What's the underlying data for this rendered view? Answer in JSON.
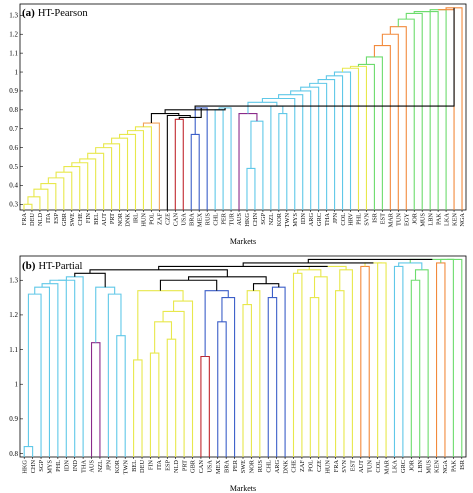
{
  "chart_data": [
    {
      "type": "dendrogram",
      "panel_letter": "(a)",
      "title": "HT-Pearson",
      "xlabel": "Markets",
      "ylabel": "",
      "ylim": [
        0.27,
        1.36
      ],
      "yticks": [
        0.3,
        0.4,
        0.5,
        0.6,
        0.7,
        0.8,
        0.9,
        1,
        1.1,
        1.2,
        1.3
      ],
      "ytick_labels": [
        "0.3",
        "0.4",
        "0.5",
        "0.6",
        "0.7",
        "0.8",
        "0.9",
        "1",
        "1.1",
        "1.2",
        "1.3"
      ],
      "leaves": [
        "FRA",
        "DEU",
        "NLD",
        "ITA",
        "ESP",
        "GBR",
        "SWE",
        "CHE",
        "FIN",
        "BEL",
        "AUT",
        "PRT",
        "NOR",
        "DNK",
        "IRL",
        "HUN",
        "POL",
        "ZAF",
        "CZE",
        "CAN",
        "USA",
        "BRA",
        "MEX",
        "RUS",
        "CHL",
        "PER",
        "TUR",
        "AUS",
        "HKG",
        "CHN",
        "SGP",
        "NZL",
        "KOR",
        "TWN",
        "MYS",
        "IDN",
        "ARG",
        "GRC",
        "THA",
        "JPN",
        "COL",
        "HRV",
        "PHL",
        "SVN",
        "ISR",
        "EST",
        "MAR",
        "TUN",
        "EGY",
        "JOR",
        "MUS",
        "LBN",
        "PAK",
        "LKA",
        "KEN",
        "NGA"
      ],
      "merges": [
        {
          "a": "FRA",
          "b": "DEU",
          "h": 0.3,
          "color": "#e8e84c"
        },
        {
          "a": "c1",
          "b": "NLD",
          "h": 0.34,
          "color": "#e8e84c"
        },
        {
          "a": "c2",
          "b": "ITA",
          "h": 0.38,
          "color": "#e8e84c"
        },
        {
          "a": "c3",
          "b": "ESP",
          "h": 0.41,
          "color": "#e8e84c"
        },
        {
          "a": "c4",
          "b": "GBR",
          "h": 0.44,
          "color": "#e8e84c"
        },
        {
          "a": "c5",
          "b": "SWE",
          "h": 0.47,
          "color": "#e8e84c"
        },
        {
          "a": "c6",
          "b": "CHE",
          "h": 0.5,
          "color": "#e8e84c"
        },
        {
          "a": "c7",
          "b": "FIN",
          "h": 0.52,
          "color": "#e8e84c"
        },
        {
          "a": "c8",
          "b": "BEL",
          "h": 0.54,
          "color": "#e8e84c"
        },
        {
          "a": "c9",
          "b": "AUT",
          "h": 0.57,
          "color": "#e8e84c"
        },
        {
          "a": "c10",
          "b": "PRT",
          "h": 0.6,
          "color": "#e8e84c"
        },
        {
          "a": "c11",
          "b": "NOR",
          "h": 0.62,
          "color": "#e8e84c"
        },
        {
          "a": "c12",
          "b": "DNK",
          "h": 0.65,
          "color": "#e8e84c"
        },
        {
          "a": "c13",
          "b": "IRL",
          "h": 0.67,
          "color": "#e8e84c"
        },
        {
          "a": "c14",
          "b": "HUN",
          "h": 0.69,
          "color": "#e8e84c"
        },
        {
          "a": "c15",
          "b": "POL",
          "h": 0.71,
          "color": "#e8e84c"
        },
        {
          "a": "c16",
          "b": "ZAF",
          "h": 0.73,
          "color": "#f2a35a"
        },
        {
          "a": "CAN",
          "b": "USA",
          "h": 0.75,
          "color": "#c0282e"
        },
        {
          "a": "BRA",
          "b": "MEX",
          "h": 0.67,
          "color": "#3c5fc8"
        },
        {
          "a": "c19",
          "b": "RUS",
          "h": 0.81,
          "color": "#3c5fc8"
        },
        {
          "a": "c18",
          "b": "c20",
          "h": 0.76,
          "color": "#000000"
        },
        {
          "a": "CZE",
          "b": "c21",
          "h": 0.77,
          "color": "#000000"
        },
        {
          "a": "CHL",
          "b": "PER",
          "h": 0.8,
          "color": "#60c8e8"
        },
        {
          "a": "c23",
          "b": "TUR",
          "h": 0.81,
          "color": "#60c8e8"
        },
        {
          "a": "HKG",
          "b": "CHN",
          "h": 0.49,
          "color": "#60c8e8"
        },
        {
          "a": "c25",
          "b": "SGP",
          "h": 0.74,
          "color": "#60c8e8"
        },
        {
          "a": "AUS",
          "b": "c26",
          "h": 0.78,
          "color": "#8a2b8a"
        },
        {
          "a": "KOR",
          "b": "TWN",
          "h": 0.78,
          "color": "#60c8e8"
        },
        {
          "a": "NZL",
          "b": "c28",
          "h": 0.82,
          "color": "#60c8e8"
        },
        {
          "a": "c27",
          "b": "c29",
          "h": 0.84,
          "color": "#60c8e8"
        },
        {
          "a": "c30",
          "b": "MYS",
          "h": 0.86,
          "color": "#60c8e8"
        },
        {
          "a": "c31",
          "b": "IDN",
          "h": 0.88,
          "color": "#60c8e8"
        },
        {
          "a": "c32",
          "b": "ARG",
          "h": 0.9,
          "color": "#60c8e8"
        },
        {
          "a": "c33",
          "b": "GRC",
          "h": 0.92,
          "color": "#60c8e8"
        },
        {
          "a": "c34",
          "b": "THA",
          "h": 0.94,
          "color": "#60c8e8"
        },
        {
          "a": "c35",
          "b": "JPN",
          "h": 0.96,
          "color": "#60c8e8"
        },
        {
          "a": "c36",
          "b": "COL",
          "h": 0.98,
          "color": "#60c8e8"
        },
        {
          "a": "c37",
          "b": "HRV",
          "h": 1.0,
          "color": "#60c8e8"
        },
        {
          "a": "c38",
          "b": "PHL",
          "h": 1.02,
          "color": "#e8e84c"
        },
        {
          "a": "c39",
          "b": "SVN",
          "h": 1.03,
          "color": "#e8e84c"
        },
        {
          "a": "c40",
          "b": "ISR",
          "h": 1.04,
          "color": "#6ddc6d"
        },
        {
          "a": "c41",
          "b": "EST",
          "h": 1.08,
          "color": "#6ddc6d"
        },
        {
          "a": "c42",
          "b": "MAR",
          "h": 1.14,
          "color": "#f28a3c"
        },
        {
          "a": "c43",
          "b": "TUN",
          "h": 1.2,
          "color": "#f28a3c"
        },
        {
          "a": "c44",
          "b": "EGY",
          "h": 1.24,
          "color": "#f28a3c"
        },
        {
          "a": "c45",
          "b": "JOR",
          "h": 1.28,
          "color": "#6ddc6d"
        },
        {
          "a": "c46",
          "b": "MUS",
          "h": 1.31,
          "color": "#6ddc6d"
        },
        {
          "a": "c47",
          "b": "LBN",
          "h": 1.32,
          "color": "#6ddc6d"
        },
        {
          "a": "c48",
          "b": "PAK",
          "h": 1.32,
          "color": "#6ddc6d"
        },
        {
          "a": "c49",
          "b": "LKA",
          "h": 1.33,
          "color": "#6ddc6d"
        },
        {
          "a": "c50",
          "b": "KEN",
          "h": 1.33,
          "color": "#f28a3c"
        },
        {
          "a": "c51",
          "b": "NGA",
          "h": 1.34,
          "color": "#f28a3c"
        },
        {
          "a": "c17",
          "b": "c22",
          "h": 0.78,
          "color": "#000000"
        },
        {
          "a": "c53",
          "b": "c24",
          "h": 0.8,
          "color": "#000000"
        },
        {
          "a": "c54",
          "b": "c52",
          "h": 0.82,
          "color": "#000000"
        }
      ],
      "grid": false
    },
    {
      "type": "dendrogram",
      "panel_letter": "(b)",
      "title": "HT-Partial",
      "xlabel": "Markets",
      "ylabel": "",
      "ylim": [
        0.79,
        1.37
      ],
      "yticks": [
        0.8,
        0.9,
        1,
        1.1,
        1.2,
        1.3
      ],
      "ytick_labels": [
        "0.8",
        "0.9",
        "1",
        "1.1",
        "1.2",
        "1.3"
      ],
      "leaves": [
        "HKG",
        "CHN",
        "SGP",
        "MYS",
        "PHL",
        "IDN",
        "IND",
        "THA",
        "AUS",
        "NZL",
        "JPN",
        "KOR",
        "TWN",
        "BEL",
        "DEU",
        "FIN",
        "ITA",
        "ESP",
        "NLD",
        "PRT",
        "GBR",
        "CAN",
        "USA",
        "MEX",
        "BRA",
        "PER",
        "SWE",
        "NOR",
        "RUS",
        "CHL",
        "ARG",
        "DNK",
        "CHE",
        "ZAF",
        "POL",
        "CZE",
        "HUN",
        "FRA",
        "SVN",
        "EST",
        "AUT",
        "TUN",
        "COL",
        "MAR",
        "LKA",
        "GRC",
        "JOR",
        "LBN",
        "MUS",
        "KEN",
        "NGA",
        "PAK",
        "ISR"
      ],
      "merges": [
        {
          "a": "HKG",
          "b": "CHN",
          "h": 0.82,
          "color": "#60c8e8"
        },
        {
          "a": "c1",
          "b": "SGP",
          "h": 1.26,
          "color": "#60c8e8"
        },
        {
          "a": "c2",
          "b": "MYS",
          "h": 1.28,
          "color": "#60c8e8"
        },
        {
          "a": "c3",
          "b": "PHL",
          "h": 1.29,
          "color": "#60c8e8"
        },
        {
          "a": "c4",
          "b": "IDN",
          "h": 1.3,
          "color": "#60c8e8"
        },
        {
          "a": "c5",
          "b": "IND",
          "h": 1.3,
          "color": "#60c8e8"
        },
        {
          "a": "c6",
          "b": "THA",
          "h": 1.31,
          "color": "#60c8e8"
        },
        {
          "a": "AUS",
          "b": "NZL",
          "h": 1.12,
          "color": "#8a2b8a"
        },
        {
          "a": "KOR",
          "b": "TWN",
          "h": 1.14,
          "color": "#60c8e8"
        },
        {
          "a": "JPN",
          "b": "c9",
          "h": 1.26,
          "color": "#60c8e8"
        },
        {
          "a": "c8",
          "b": "c10",
          "h": 1.28,
          "color": "#60c8e8"
        },
        {
          "a": "c7",
          "b": "c11",
          "h": 1.32,
          "color": "#000000"
        },
        {
          "a": "BEL",
          "b": "DEU",
          "h": 1.07,
          "color": "#e8e84c"
        },
        {
          "a": "FIN",
          "b": "ITA",
          "h": 1.09,
          "color": "#e8e84c"
        },
        {
          "a": "ESP",
          "b": "NLD",
          "h": 1.13,
          "color": "#e8e84c"
        },
        {
          "a": "c14",
          "b": "c15",
          "h": 1.18,
          "color": "#e8e84c"
        },
        {
          "a": "c16",
          "b": "PRT",
          "h": 1.21,
          "color": "#e8e84c"
        },
        {
          "a": "c17",
          "b": "GBR",
          "h": 1.24,
          "color": "#e8e84c"
        },
        {
          "a": "c13",
          "b": "c18",
          "h": 1.27,
          "color": "#e8e84c"
        },
        {
          "a": "CAN",
          "b": "USA",
          "h": 1.08,
          "color": "#c0282e"
        },
        {
          "a": "MEX",
          "b": "BRA",
          "h": 1.18,
          "color": "#3c5fc8"
        },
        {
          "a": "c21",
          "b": "PER",
          "h": 1.25,
          "color": "#3c5fc8"
        },
        {
          "a": "c20",
          "b": "c22",
          "h": 1.27,
          "color": "#3c5fc8"
        },
        {
          "a": "SWE",
          "b": "NOR",
          "h": 1.23,
          "color": "#e8e84c"
        },
        {
          "a": "c24",
          "b": "RUS",
          "h": 1.27,
          "color": "#e8e84c"
        },
        {
          "a": "CHL",
          "b": "ARG",
          "h": 1.25,
          "color": "#3c5fc8"
        },
        {
          "a": "c26",
          "b": "DNK",
          "h": 1.28,
          "color": "#3c5fc8"
        },
        {
          "a": "c25",
          "b": "c27",
          "h": 1.29,
          "color": "#000000"
        },
        {
          "a": "c19",
          "b": "c23",
          "h": 1.3,
          "color": "#000000"
        },
        {
          "a": "c29",
          "b": "c28",
          "h": 1.31,
          "color": "#000000"
        },
        {
          "a": "CHE",
          "b": "ZAF",
          "h": 1.32,
          "color": "#e8e84c"
        },
        {
          "a": "POL",
          "b": "CZE",
          "h": 1.25,
          "color": "#e8e84c"
        },
        {
          "a": "c32",
          "b": "HUN",
          "h": 1.31,
          "color": "#e8e84c"
        },
        {
          "a": "c31",
          "b": "c33",
          "h": 1.33,
          "color": "#e8e84c"
        },
        {
          "a": "FRA",
          "b": "SVN",
          "h": 1.27,
          "color": "#e8e84c"
        },
        {
          "a": "c35",
          "b": "EST",
          "h": 1.33,
          "color": "#e8e84c"
        },
        {
          "a": "c34",
          "b": "c36",
          "h": 1.34,
          "color": "#e8e84c"
        },
        {
          "a": "AUT",
          "b": "TUN",
          "h": 1.34,
          "color": "#f28a3c"
        },
        {
          "a": "COL",
          "b": "MAR",
          "h": 1.35,
          "color": "#e8e84c"
        },
        {
          "a": "c38",
          "b": "c39",
          "h": 1.35,
          "color": "#e8e84c"
        },
        {
          "a": "LKA",
          "b": "GRC",
          "h": 1.34,
          "color": "#60c8e8"
        },
        {
          "a": "JOR",
          "b": "LBN",
          "h": 1.3,
          "color": "#6ddc6d"
        },
        {
          "a": "c42",
          "b": "MUS",
          "h": 1.33,
          "color": "#6ddc6d"
        },
        {
          "a": "c41",
          "b": "c43",
          "h": 1.35,
          "color": "#60c8e8"
        },
        {
          "a": "KEN",
          "b": "NGA",
          "h": 1.35,
          "color": "#f28a3c"
        },
        {
          "a": "c45",
          "b": "PAK",
          "h": 1.36,
          "color": "#6ddc6d"
        },
        {
          "a": "c46",
          "b": "ISR",
          "h": 1.36,
          "color": "#6ddc6d"
        },
        {
          "a": "c44",
          "b": "c47",
          "h": 1.36,
          "color": "#6ddc6d"
        },
        {
          "a": "c12",
          "b": "c30",
          "h": 1.33,
          "color": "#000000"
        },
        {
          "a": "c49",
          "b": "c37",
          "h": 1.34,
          "color": "#000000"
        },
        {
          "a": "c50",
          "b": "c40",
          "h": 1.35,
          "color": "#000000"
        },
        {
          "a": "c51",
          "b": "c48",
          "h": 1.36,
          "color": "#000000"
        }
      ],
      "grid": false
    }
  ]
}
